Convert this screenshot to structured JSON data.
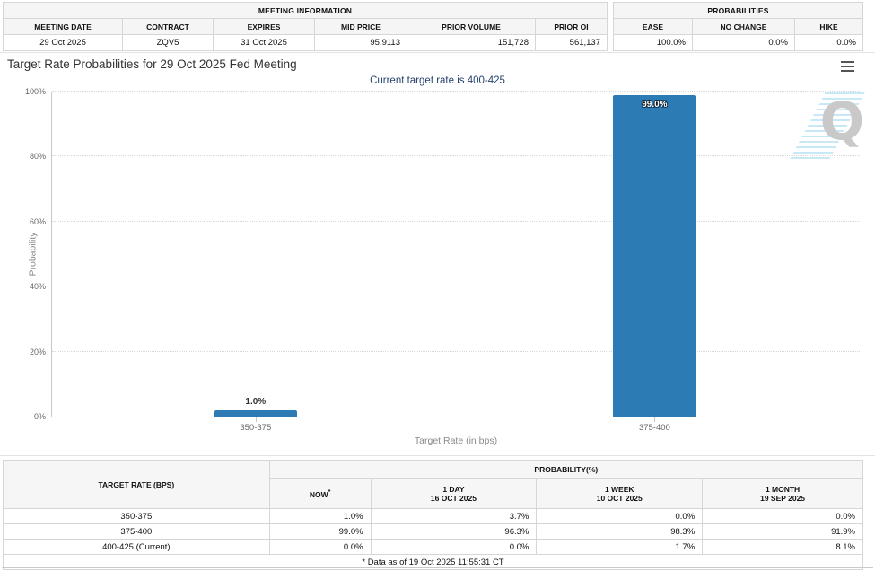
{
  "meeting_information": {
    "title": "MEETING INFORMATION",
    "columns": [
      "MEETING DATE",
      "CONTRACT",
      "EXPIRES",
      "MID PRICE",
      "PRIOR VOLUME",
      "PRIOR OI"
    ],
    "values": [
      "29 Oct 2025",
      "ZQV5",
      "31 Oct 2025",
      "95.9113",
      "151,728",
      "561,137"
    ]
  },
  "probabilities_summary": {
    "title": "PROBABILITIES",
    "columns": [
      "EASE",
      "NO CHANGE",
      "HIKE"
    ],
    "values": [
      "100.0%",
      "0.0%",
      "0.0%"
    ]
  },
  "chart": {
    "title": "Target Rate Probabilities for 29 Oct 2025 Fed Meeting",
    "subtitle": "Current target rate is 400-425",
    "menu_icon": "hamburger-menu",
    "watermark_letter": "Q"
  },
  "chart_data": {
    "type": "bar",
    "title": "Target Rate Probabilities for 29 Oct 2025 Fed Meeting",
    "subtitle": "Current target rate is 400-425",
    "categories": [
      "350-375",
      "375-400"
    ],
    "values": [
      1.0,
      99.0
    ],
    "labels": [
      "1.0%",
      "99.0%"
    ],
    "xlabel": "Target Rate (in bps)",
    "ylabel": "Probability",
    "ylim": [
      0,
      100
    ],
    "yticks": [
      "0%",
      "20%",
      "40%",
      "60%",
      "80%",
      "100%"
    ],
    "bar_color": "#2d7bb5",
    "grid": "dotted horizontal",
    "legend": "none"
  },
  "probability_table": {
    "header_rate": "TARGET RATE (BPS)",
    "header_probability": "PROBABILITY(%)",
    "subcolumns": [
      {
        "label": "NOW",
        "sup": "*",
        "date": ""
      },
      {
        "label": "1 DAY",
        "date": "16 OCT 2025"
      },
      {
        "label": "1 WEEK",
        "date": "10 OCT 2025"
      },
      {
        "label": "1 MONTH",
        "date": "19 SEP 2025"
      }
    ],
    "rows": [
      {
        "rate": "350-375",
        "now": "1.0%",
        "day": "3.7%",
        "week": "0.0%",
        "month": "0.0%"
      },
      {
        "rate": "375-400",
        "now": "99.0%",
        "day": "96.3%",
        "week": "98.3%",
        "month": "91.9%"
      },
      {
        "rate": "400-425 (Current)",
        "now": "0.0%",
        "day": "0.0%",
        "week": "1.7%",
        "month": "8.1%"
      }
    ],
    "footnote": "* Data as of 19 Oct 2025 11:55:31 CT"
  }
}
